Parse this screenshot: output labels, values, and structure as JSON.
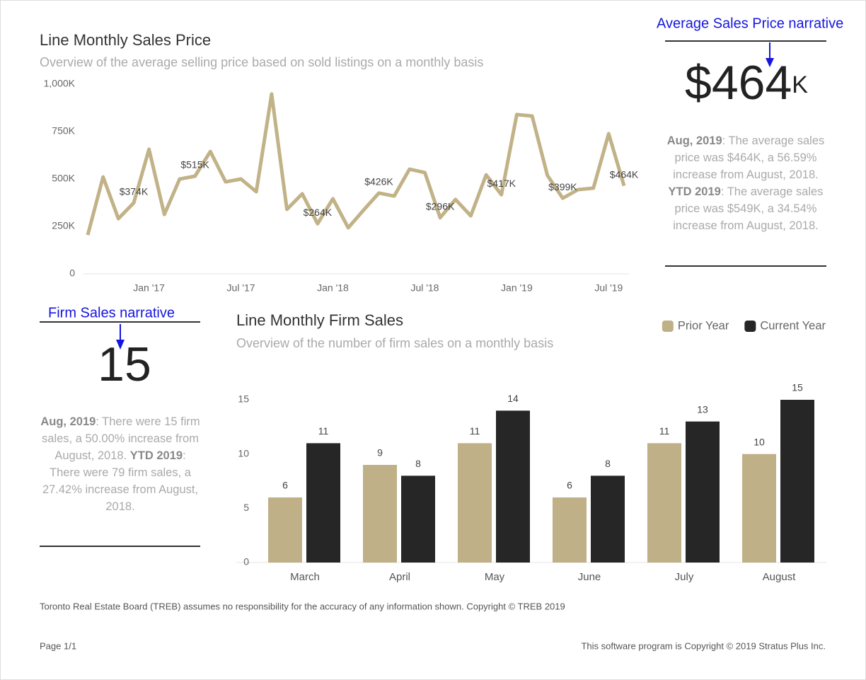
{
  "annotations": {
    "price_narrative": "Average Sales Price narrative",
    "firm_narrative": "Firm Sales narrative"
  },
  "price_kpi": {
    "value": "$464",
    "unit": "K",
    "narrative": [
      {
        "text": "Aug, 2019",
        "bold": true
      },
      {
        "text": ": The average sales price was $464K, a 56.59% increase from August, 2018. "
      },
      {
        "text": "YTD 2019",
        "bold": true
      },
      {
        "text": ": The average sales price was $549K, a 34.54% increase from August, 2018."
      }
    ]
  },
  "firm_kpi": {
    "value": "15",
    "narrative": [
      {
        "text": "Aug, 2019",
        "bold": true
      },
      {
        "text": ": There were 15 firm sales, a 50.00% increase from August, 2018. "
      },
      {
        "text": "YTD 2019",
        "bold": true
      },
      {
        "text": ": There were 79 firm sales, a 27.42% increase from August, 2018."
      }
    ]
  },
  "chart_data": [
    {
      "type": "line",
      "title": "Line Monthly Sales Price",
      "subtitle": "Overview of the average selling price based on sold listings on a monthly basis",
      "x": [
        "2016-09",
        "2016-10",
        "2016-11",
        "2016-12",
        "2017-01",
        "2017-02",
        "2017-03",
        "2017-04",
        "2017-05",
        "2017-06",
        "2017-07",
        "2017-08",
        "2017-09",
        "2017-10",
        "2017-11",
        "2017-12",
        "2018-01",
        "2018-02",
        "2018-03",
        "2018-04",
        "2018-05",
        "2018-06",
        "2018-07",
        "2018-08",
        "2018-09",
        "2018-10",
        "2018-11",
        "2018-12",
        "2019-01",
        "2019-02",
        "2019-03",
        "2019-04",
        "2019-05",
        "2019-06",
        "2019-07",
        "2019-08"
      ],
      "values": [
        205,
        511,
        291,
        374,
        657,
        313,
        500,
        515,
        645,
        485,
        500,
        433,
        948,
        340,
        422,
        264,
        396,
        243,
        336,
        426,
        410,
        552,
        534,
        296,
        392,
        306,
        522,
        417,
        840,
        832,
        519,
        399,
        444,
        452,
        739,
        464
      ],
      "value_labels": [
        null,
        null,
        null,
        "$374K",
        null,
        null,
        null,
        "$515K",
        null,
        null,
        null,
        null,
        null,
        null,
        null,
        "$264K",
        null,
        null,
        null,
        "$426K",
        null,
        null,
        null,
        "$296K",
        null,
        null,
        null,
        "$417K",
        null,
        null,
        null,
        "$399K",
        null,
        null,
        null,
        "$464K"
      ],
      "color": "#c1b287",
      "xlim": [
        "2016-09",
        "2019-08"
      ],
      "xticks": [
        {
          "value": "2017-01",
          "label": "Jan '17"
        },
        {
          "value": "2017-07",
          "label": "Jul '17"
        },
        {
          "value": "2018-01",
          "label": "Jan '18"
        },
        {
          "value": "2018-07",
          "label": "Jul '18"
        },
        {
          "value": "2019-01",
          "label": "Jan '19"
        },
        {
          "value": "2019-07",
          "label": "Jul '19"
        }
      ],
      "ylim": [
        0,
        1000
      ],
      "yticks": [
        0,
        {
          "value": 250,
          "label": "250K"
        },
        {
          "value": 500,
          "label": "500K"
        },
        {
          "value": 750,
          "label": "750K"
        },
        {
          "value": 1000,
          "label": "1,000K"
        }
      ],
      "grid": false
    },
    {
      "type": "bar",
      "title": "Line Monthly Firm Sales",
      "subtitle": "Overview of the number of firm sales on a monthly basis",
      "categories": [
        "March",
        "April",
        "May",
        "June",
        "July",
        "August"
      ],
      "series": [
        {
          "name": "Prior Year",
          "color": "#c0b088",
          "values": [
            6,
            9,
            11,
            6,
            11,
            10
          ]
        },
        {
          "name": "Current Year",
          "color": "#262626",
          "values": [
            11,
            8,
            14,
            8,
            13,
            15
          ]
        }
      ],
      "ylim": [
        0,
        15
      ],
      "yticks": [
        0,
        5,
        10,
        15
      ],
      "grid": false,
      "legend": "top-right"
    }
  ],
  "footer": {
    "disclaimer": "Toronto Real Estate Board (TREB) assumes no responsibility for the accuracy of any information shown. Copyright © TREB 2019",
    "page": "Page 1/1",
    "copyright": "This software program is Copyright © 2019 Stratus Plus Inc."
  }
}
